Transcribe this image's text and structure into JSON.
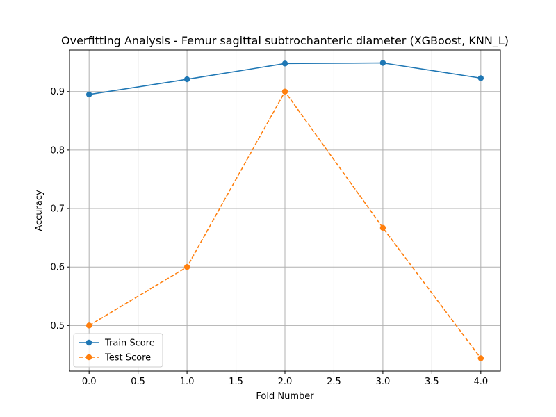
{
  "chart_data": {
    "type": "line",
    "title": "Overfitting Analysis - Femur sagittal subtrochanteric diameter (XGBoost, KNN_L)",
    "xlabel": "Fold Number",
    "ylabel": "Accuracy",
    "x": [
      0,
      1,
      2,
      3,
      4
    ],
    "xlim": [
      -0.2,
      4.2
    ],
    "ylim": [
      0.422,
      0.971
    ],
    "x_ticks": [
      0.0,
      0.5,
      1.0,
      1.5,
      2.0,
      2.5,
      3.0,
      3.5,
      4.0
    ],
    "x_tick_labels": [
      "0.0",
      "0.5",
      "1.0",
      "1.5",
      "2.0",
      "2.5",
      "3.0",
      "3.5",
      "4.0"
    ],
    "y_ticks": [
      0.5,
      0.6,
      0.7,
      0.8,
      0.9
    ],
    "y_tick_labels": [
      "0.5",
      "0.6",
      "0.7",
      "0.8",
      "0.9"
    ],
    "grid": true,
    "legend_position": "lower-left",
    "series": [
      {
        "name": "Train Score",
        "values": [
          0.895,
          0.921,
          0.948,
          0.949,
          0.923
        ],
        "color": "#1f77b4",
        "line_style": "solid",
        "marker": "circle"
      },
      {
        "name": "Test Score",
        "values": [
          0.5,
          0.6,
          0.9,
          0.667,
          0.444
        ],
        "color": "#ff7f0e",
        "line_style": "dashed",
        "marker": "circle"
      }
    ]
  }
}
